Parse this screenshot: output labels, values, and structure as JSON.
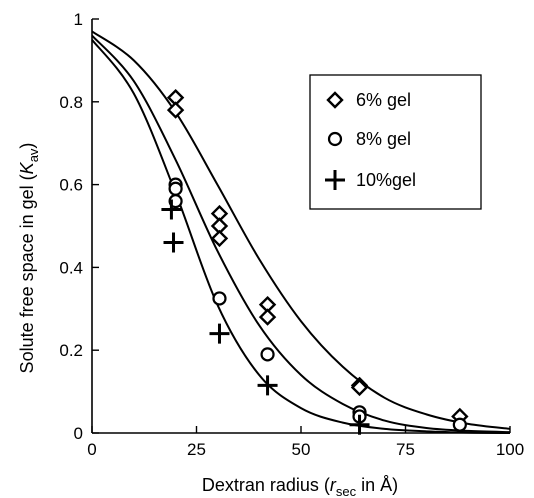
{
  "chart_data": {
    "type": "scatter",
    "xlabel": {
      "pre": "Dextran radius (",
      "var": "r",
      "sub": "sec",
      "post": " in Å)"
    },
    "ylabel": {
      "pre": "Solute free space in gel (",
      "var": "K",
      "sub": "av",
      "post": ")"
    },
    "xlim": [
      0,
      100
    ],
    "ylim": [
      0,
      1
    ],
    "x_ticks": [
      0,
      25,
      50,
      75,
      100
    ],
    "x_tick_labels": [
      "0",
      "25",
      "50",
      "75",
      "100"
    ],
    "y_ticks": [
      0,
      0.2,
      0.4,
      0.6,
      0.8,
      1
    ],
    "y_tick_labels": [
      "0",
      "0.2",
      "0.4",
      "0.6",
      "0.8",
      "1"
    ],
    "grid": false,
    "legend_position": "top-right",
    "series": [
      {
        "name": "6% gel",
        "marker": "diamond",
        "points": [
          [
            20,
            0.81
          ],
          [
            20,
            0.78
          ],
          [
            30.5,
            0.53
          ],
          [
            30.5,
            0.5
          ],
          [
            30.5,
            0.47
          ],
          [
            42,
            0.31
          ],
          [
            42,
            0.28
          ],
          [
            64,
            0.115
          ],
          [
            64,
            0.11
          ],
          [
            88,
            0.04
          ]
        ],
        "fit": [
          [
            0,
            0.97
          ],
          [
            10,
            0.9
          ],
          [
            20,
            0.775
          ],
          [
            30,
            0.6
          ],
          [
            40,
            0.42
          ],
          [
            50,
            0.27
          ],
          [
            60,
            0.16
          ],
          [
            70,
            0.085
          ],
          [
            80,
            0.045
          ],
          [
            90,
            0.022
          ],
          [
            100,
            0.01
          ]
        ]
      },
      {
        "name": "8% gel",
        "marker": "circle",
        "points": [
          [
            20,
            0.6
          ],
          [
            20,
            0.59
          ],
          [
            20,
            0.56
          ],
          [
            30.5,
            0.325
          ],
          [
            42,
            0.19
          ],
          [
            64,
            0.05
          ],
          [
            64,
            0.04
          ],
          [
            88,
            0.02
          ]
        ],
        "fit": [
          [
            0,
            0.96
          ],
          [
            10,
            0.85
          ],
          [
            20,
            0.66
          ],
          [
            30,
            0.44
          ],
          [
            40,
            0.26
          ],
          [
            50,
            0.14
          ],
          [
            60,
            0.07
          ],
          [
            70,
            0.03
          ],
          [
            80,
            0.012
          ],
          [
            90,
            0.005
          ],
          [
            100,
            0.002
          ]
        ]
      },
      {
        "name": "10%gel",
        "marker": "plus",
        "points": [
          [
            19,
            0.54
          ],
          [
            19.5,
            0.46
          ],
          [
            30.5,
            0.24
          ],
          [
            42,
            0.115
          ],
          [
            64,
            0.02
          ]
        ],
        "fit": [
          [
            0,
            0.95
          ],
          [
            10,
            0.82
          ],
          [
            20,
            0.58
          ],
          [
            30,
            0.31
          ],
          [
            40,
            0.14
          ],
          [
            50,
            0.06
          ],
          [
            60,
            0.025
          ],
          [
            70,
            0.01
          ],
          [
            80,
            0.004
          ],
          [
            90,
            0.001
          ],
          [
            100,
            0
          ]
        ]
      }
    ],
    "colors": {
      "ink": "#000000",
      "background": "#ffffff"
    }
  }
}
